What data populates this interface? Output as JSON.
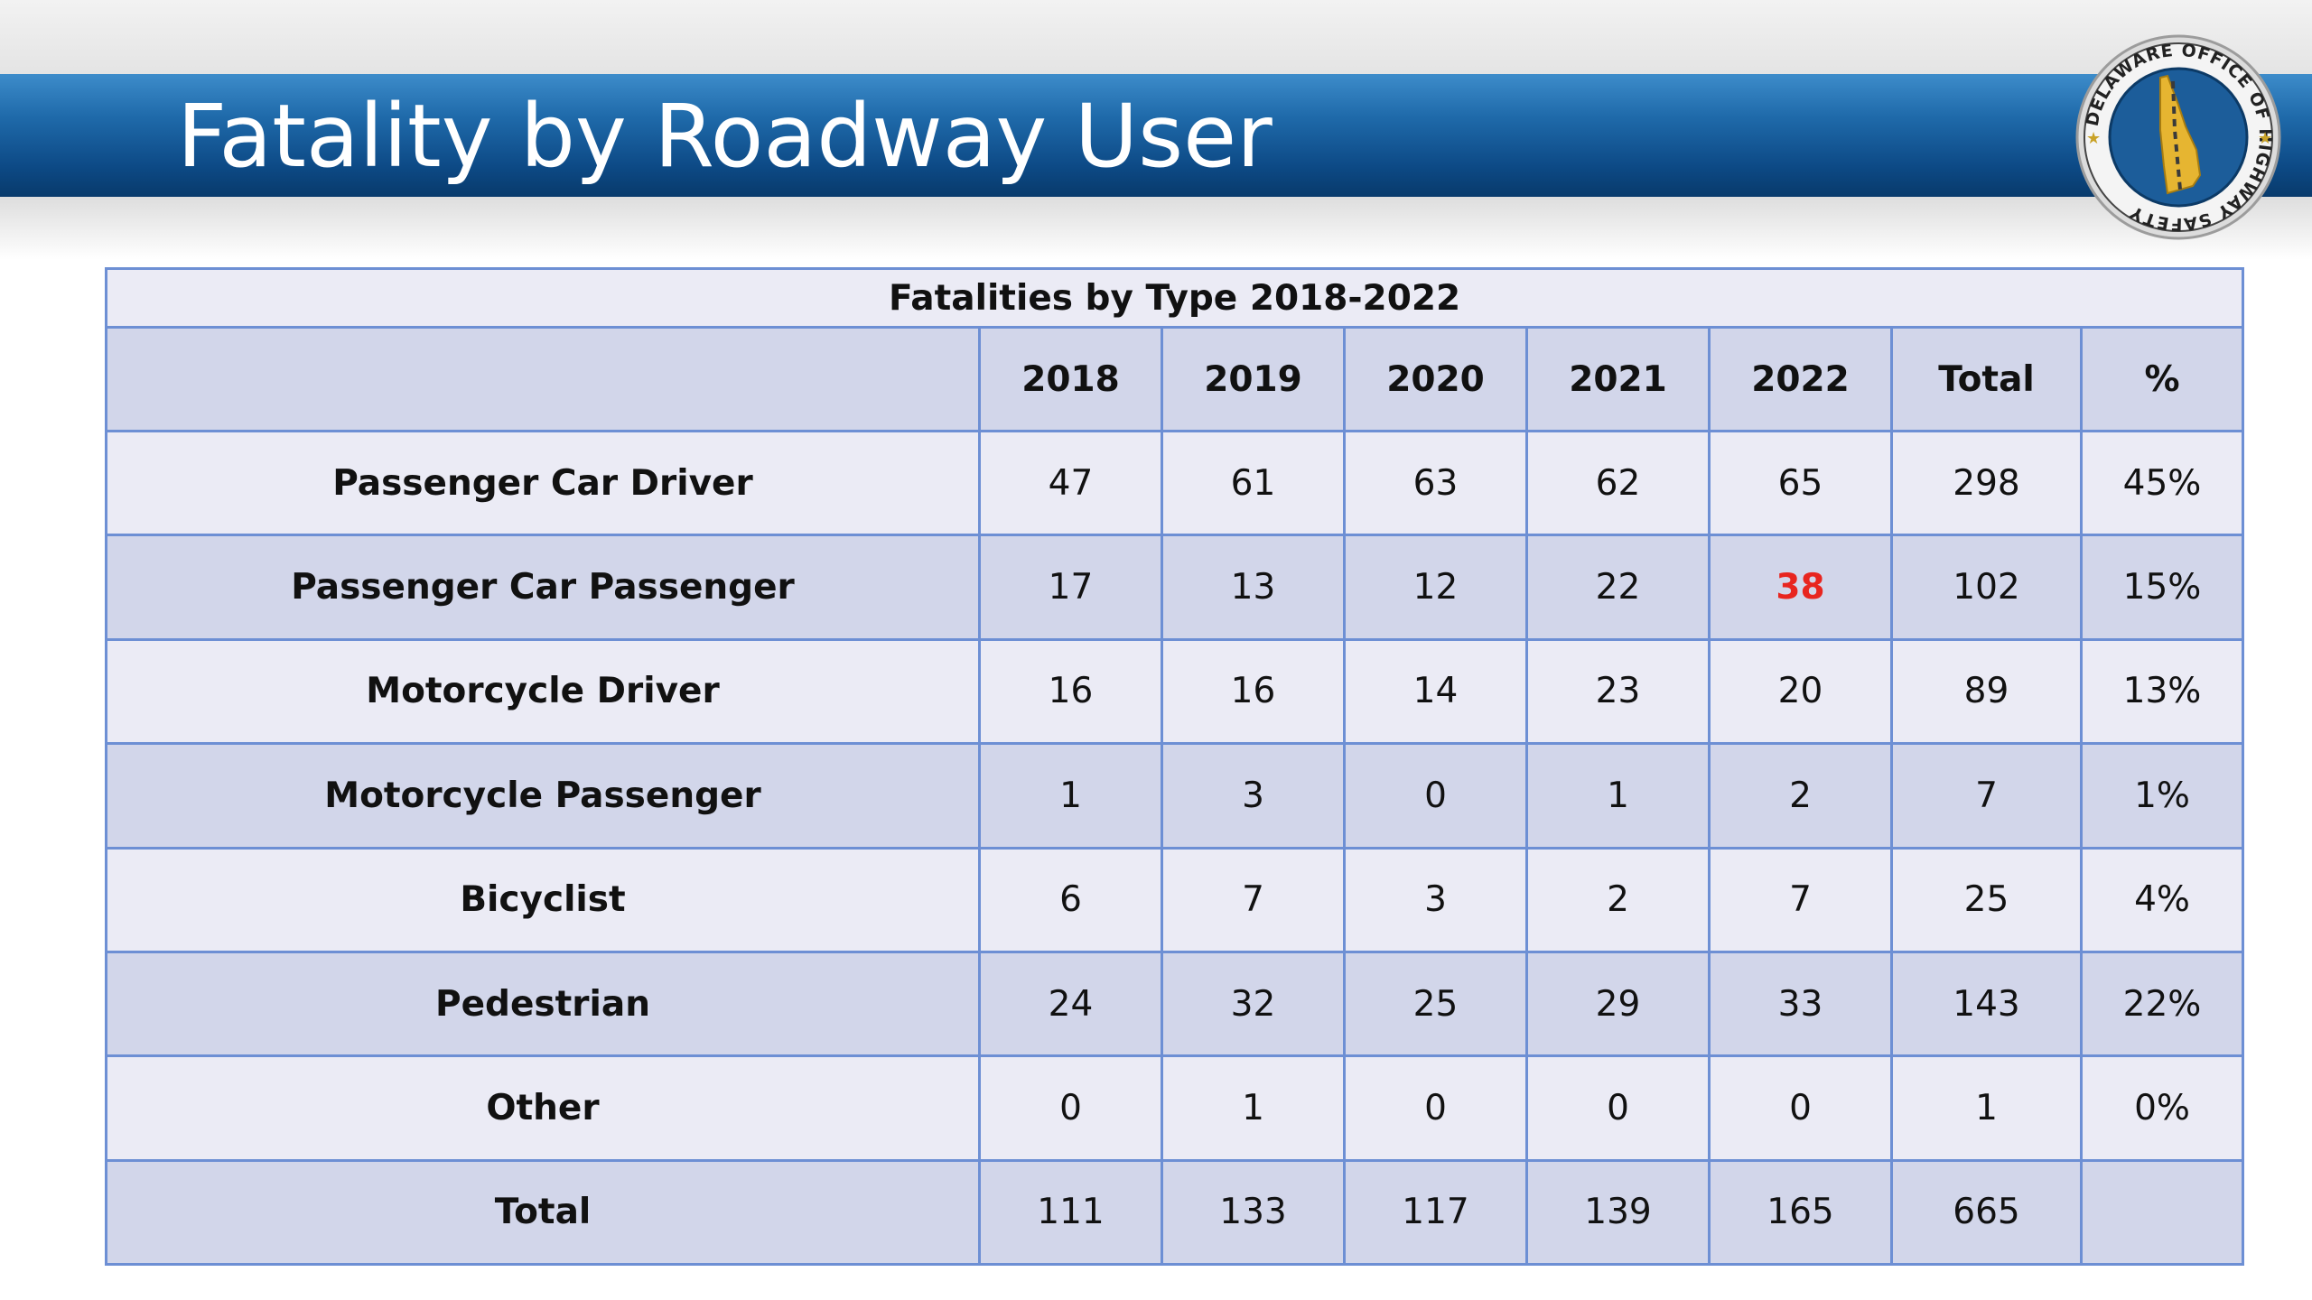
{
  "slide": {
    "title": "Fatality by Roadway User",
    "seal_text": "DELAWARE OFFICE OF HIGHWAY SAFETY",
    "colors": {
      "title_bar": "#1f6aaa",
      "highlight": "#e8251f",
      "grid": "#6d8fd4"
    }
  },
  "table": {
    "caption": "Fatalities by Type 2018-2022",
    "columns": [
      "",
      "2018",
      "2019",
      "2020",
      "2021",
      "2022",
      "Total",
      "%"
    ],
    "rows": [
      {
        "label": "Passenger Car Driver",
        "values": [
          "47",
          "61",
          "63",
          "62",
          "65",
          "298",
          "45%"
        ]
      },
      {
        "label": "Passenger Car Passenger",
        "values": [
          "17",
          "13",
          "12",
          "22",
          "38",
          "102",
          "15%"
        ]
      },
      {
        "label": "Motorcycle Driver",
        "values": [
          "16",
          "16",
          "14",
          "23",
          "20",
          "89",
          "13%"
        ]
      },
      {
        "label": "Motorcycle Passenger",
        "values": [
          "1",
          "3",
          "0",
          "1",
          "2",
          "7",
          "1%"
        ]
      },
      {
        "label": "Bicyclist",
        "values": [
          "6",
          "7",
          "3",
          "2",
          "7",
          "25",
          "4%"
        ]
      },
      {
        "label": "Pedestrian",
        "values": [
          "24",
          "32",
          "25",
          "29",
          "33",
          "143",
          "22%"
        ]
      },
      {
        "label": "Other",
        "values": [
          "0",
          "1",
          "0",
          "0",
          "0",
          "1",
          "0%"
        ]
      },
      {
        "label": "Total",
        "values": [
          "111",
          "133",
          "117",
          "139",
          "165",
          "665",
          ""
        ]
      }
    ],
    "highlighted_cell": {
      "row": "Passenger Car Passenger",
      "column": "2022"
    }
  }
}
